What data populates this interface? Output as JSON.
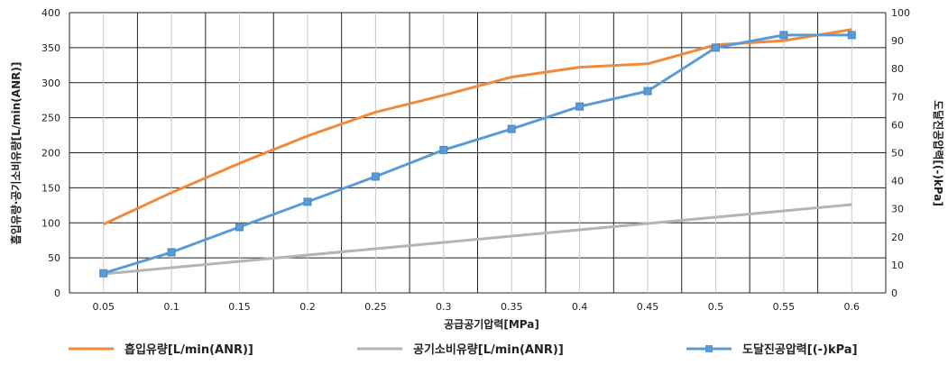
{
  "chart_data": {
    "type": "line",
    "title": "",
    "xlabel": "공급공기압력[MPa]",
    "ylabel_left": "흡입유량·공기소비유량[L/min(ANR)]",
    "ylabel_right": "도달진공압력[(-)kPa]",
    "x": [
      0.05,
      0.1,
      0.15,
      0.2,
      0.25,
      0.3,
      0.35,
      0.4,
      0.45,
      0.5,
      0.55,
      0.6
    ],
    "x_tick_labels": [
      "0.05",
      "0.1",
      "0.15",
      "0.2",
      "0.25",
      "0.3",
      "0.35",
      "0.4",
      "0.45",
      "0.5",
      "0.55",
      "0.6"
    ],
    "ylim_left": [
      0,
      400
    ],
    "yticks_left": [
      "0",
      "50",
      "100",
      "150",
      "200",
      "250",
      "300",
      "350",
      "400"
    ],
    "ylim_right": [
      0,
      100
    ],
    "yticks_right": [
      "0",
      "10",
      "20",
      "30",
      "40",
      "50",
      "60",
      "70",
      "80",
      "90",
      "100"
    ],
    "grid": true,
    "legend_position": "bottom",
    "series": [
      {
        "name": "흡입유량[L/min(ANR)]",
        "axis": "left",
        "color": "#f08a3c",
        "marker": false,
        "values": [
          98,
          143,
          185,
          224,
          258,
          282,
          308,
          322,
          327,
          354,
          360,
          376
        ]
      },
      {
        "name": "공기소비유량[L/min(ANR)]",
        "axis": "left",
        "color": "#b4b4b4",
        "marker": false,
        "values": [
          27,
          36,
          45,
          54,
          63,
          72,
          81,
          90,
          99,
          108,
          117,
          126
        ]
      },
      {
        "name": "도달진공압력[(-)kPa]",
        "axis": "right",
        "color": "#5b9bd5",
        "marker": true,
        "values": [
          7,
          14.5,
          23.5,
          32.5,
          41.5,
          51,
          58.5,
          66.5,
          72,
          87.5,
          92,
          92
        ]
      }
    ]
  }
}
